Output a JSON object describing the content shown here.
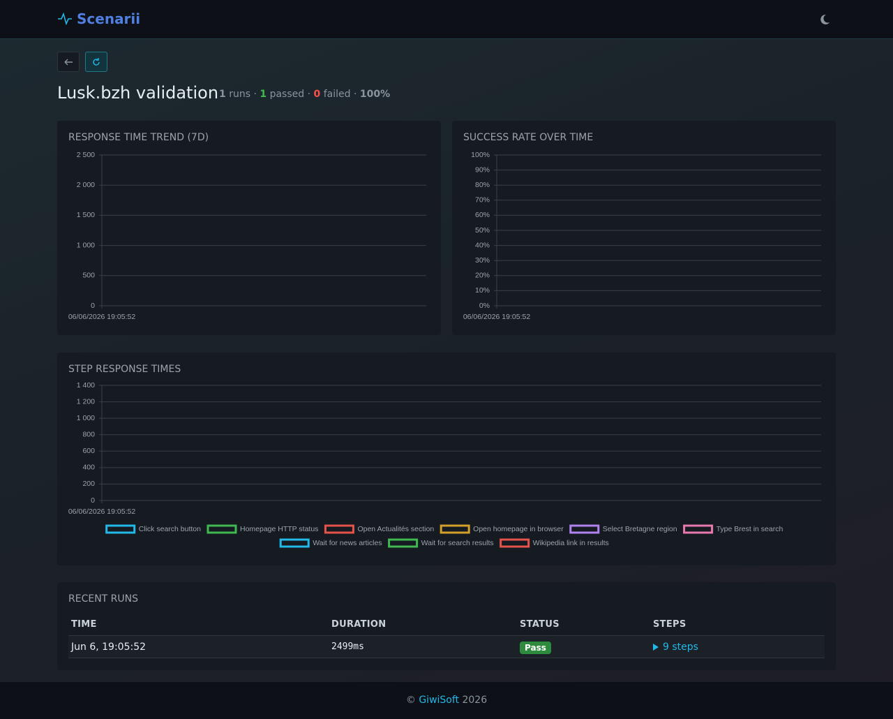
{
  "header": {
    "brand": "Scenarii"
  },
  "page": {
    "title": "Lusk.bzh validation",
    "summary": {
      "runs": 1,
      "runs_label": "runs",
      "separator": "·",
      "passed": 1,
      "passed_label": "passed",
      "failed": 0,
      "failed_label": "failed",
      "rate": "100%"
    }
  },
  "chart_data": [
    {
      "type": "line",
      "title": "RESPONSE TIME TREND (7D)",
      "categories": [
        "06/06/2026 19:05:52"
      ],
      "series": [
        {
          "name": null,
          "color": "#22b8e8",
          "values": [
            null
          ]
        }
      ],
      "ylim": [
        0,
        2500
      ],
      "yticks": [
        0,
        500,
        {
          "value": 1000,
          "label": "1 000"
        },
        {
          "value": 1500,
          "label": "1 500"
        },
        {
          "value": 2000,
          "label": "2 000"
        },
        {
          "value": 2500,
          "label": "2 500"
        }
      ],
      "grid": true
    },
    {
      "type": "line",
      "title": "SUCCESS RATE OVER TIME",
      "categories": [
        "06/06/2026 19:05:52"
      ],
      "series": [
        {
          "name": null,
          "color": "#3fb950",
          "values": [
            null
          ]
        }
      ],
      "ylim": [
        0,
        100
      ],
      "yticks": [
        {
          "value": 0,
          "label": "0%"
        },
        {
          "value": 10,
          "label": "10%"
        },
        {
          "value": 20,
          "label": "20%"
        },
        {
          "value": 30,
          "label": "30%"
        },
        {
          "value": 40,
          "label": "40%"
        },
        {
          "value": 50,
          "label": "50%"
        },
        {
          "value": 60,
          "label": "60%"
        },
        {
          "value": 70,
          "label": "70%"
        },
        {
          "value": 80,
          "label": "80%"
        },
        {
          "value": 90,
          "label": "90%"
        },
        {
          "value": 100,
          "label": "100%"
        }
      ],
      "grid": true
    },
    {
      "type": "line",
      "title": "STEP RESPONSE TIMES",
      "categories": [
        "06/06/2026 19:05:52"
      ],
      "series": [
        {
          "name": "Click search button",
          "color": "#22b8e8",
          "values": [
            null
          ]
        },
        {
          "name": "Homepage HTTP status",
          "color": "#3fb950",
          "values": [
            null
          ]
        },
        {
          "name": "Open Actualités section",
          "color": "#e5534b",
          "values": [
            null
          ]
        },
        {
          "name": "Open homepage in browser",
          "color": "#d4a02a",
          "values": [
            null
          ]
        },
        {
          "name": "Select Bretagne region",
          "color": "#b083f0",
          "values": [
            null
          ]
        },
        {
          "name": "Type Brest in search",
          "color": "#e879b0",
          "values": [
            null
          ]
        },
        {
          "name": "Wait for news articles",
          "color": "#22b8e8",
          "values": [
            null
          ]
        },
        {
          "name": "Wait for search results",
          "color": "#3fb950",
          "values": [
            null
          ]
        },
        {
          "name": "Wikipedia link in results",
          "color": "#e5534b",
          "values": [
            null
          ]
        }
      ],
      "ylim": [
        0,
        1400
      ],
      "yticks": [
        0,
        200,
        400,
        600,
        800,
        {
          "value": 1000,
          "label": "1 000"
        },
        {
          "value": 1200,
          "label": "1 200"
        },
        {
          "value": 1400,
          "label": "1 400"
        }
      ],
      "grid": true,
      "legend": "bottom"
    }
  ],
  "runs": {
    "title": "RECENT RUNS",
    "columns": [
      "TIME",
      "DURATION",
      "STATUS",
      "STEPS"
    ],
    "rows": [
      [
        "Jun 6, 19:05:52",
        "2499ms",
        "Pass",
        "9 steps"
      ]
    ]
  },
  "footer": {
    "copyright": "©",
    "company": "GiwiSoft",
    "year": "2026"
  }
}
